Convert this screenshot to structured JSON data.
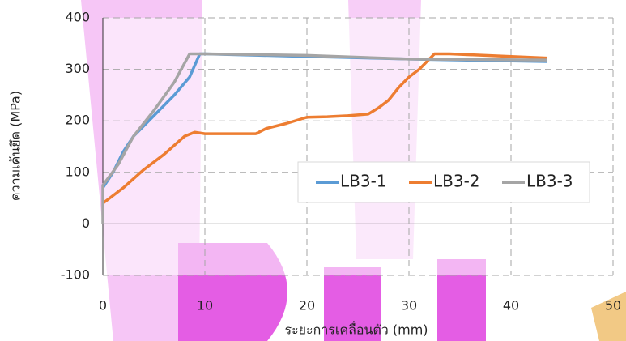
{
  "chart_data": {
    "type": "line",
    "x_label": "ระยะการเคลื่อนตัว (mm)",
    "y_label": "ความเค้นยึด (MPa)",
    "xlim": [
      0,
      50
    ],
    "xticks": [
      0,
      10,
      20,
      30,
      40,
      50
    ],
    "ylim": [
      -100,
      400
    ],
    "yticks": [
      -100,
      0,
      100,
      200,
      300,
      400
    ],
    "grid": true,
    "legend": "center-right",
    "series": [
      {
        "name": "LB3-1",
        "color": "#5b9bd5",
        "x": [
          0,
          1,
          2,
          3,
          5,
          7,
          8.5,
          9.5,
          10,
          20,
          30,
          43.5
        ],
        "values": [
          70,
          100,
          140,
          170,
          210,
          250,
          285,
          330,
          330,
          325,
          320,
          315
        ]
      },
      {
        "name": "LB3-2",
        "color": "#ed7d31",
        "x": [
          0,
          2,
          4,
          6,
          8,
          9,
          10,
          12,
          15,
          16,
          18,
          20,
          22,
          24,
          26,
          27,
          28,
          29,
          30,
          31,
          32.5,
          34,
          43.5
        ],
        "values": [
          40,
          70,
          105,
          135,
          170,
          178,
          175,
          175,
          175,
          185,
          195,
          207,
          208,
          210,
          213,
          225,
          240,
          265,
          285,
          300,
          330,
          330,
          322
        ]
      },
      {
        "name": "LB3-3",
        "color": "#a5a5a5",
        "x": [
          0,
          0,
          1.5,
          3,
          5,
          7,
          8.5,
          10,
          20,
          30,
          43.5
        ],
        "values": [
          0,
          75,
          115,
          170,
          220,
          275,
          330,
          330,
          327,
          320,
          318
        ]
      }
    ]
  }
}
